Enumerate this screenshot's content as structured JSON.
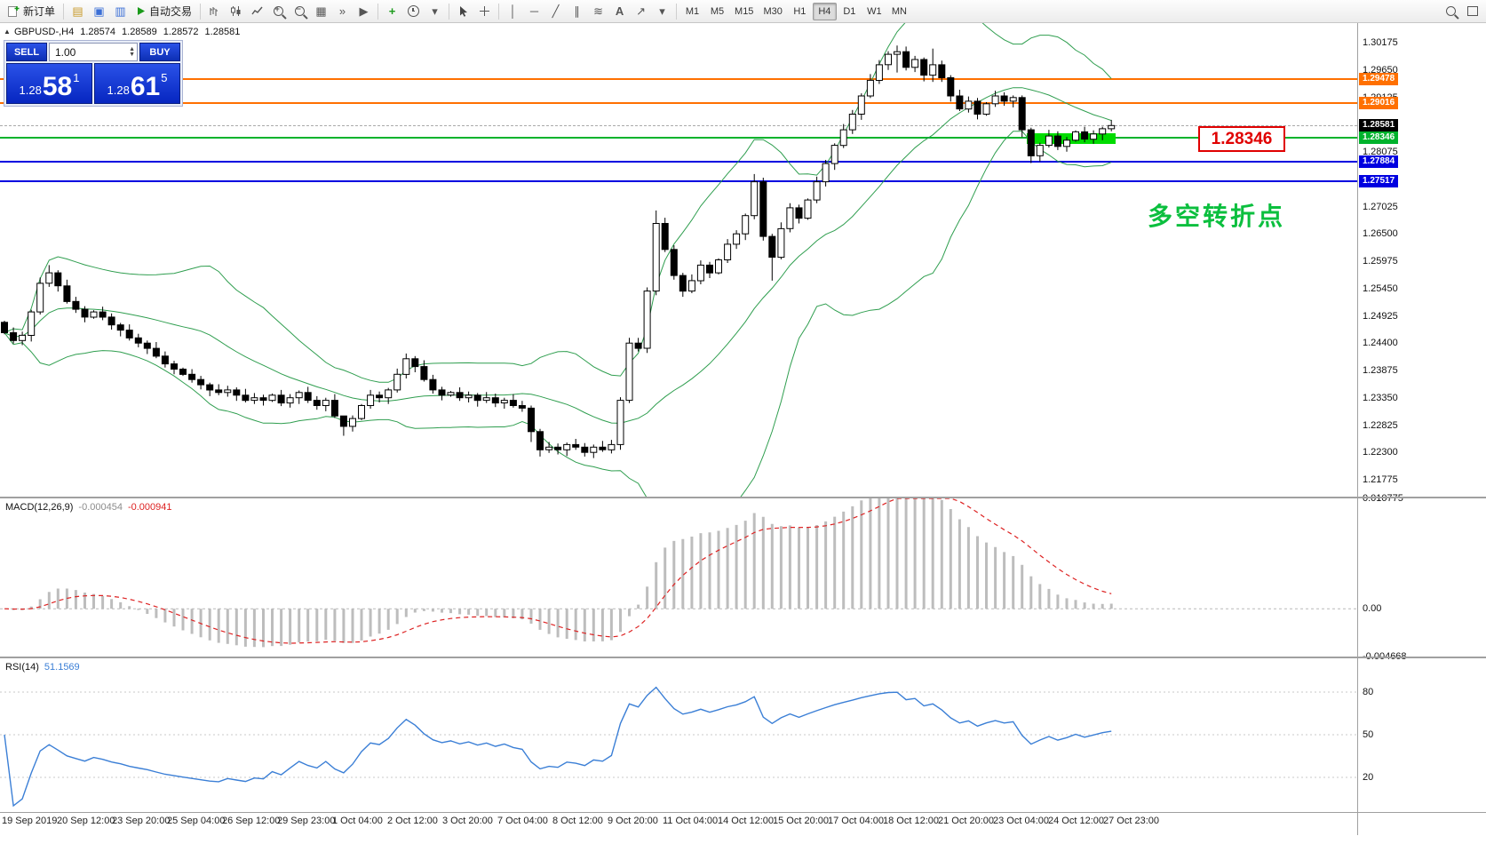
{
  "toolbar": {
    "new_order_label": "新订单",
    "autotrading_label": "自动交易",
    "timeframes": [
      "M1",
      "M5",
      "M15",
      "M30",
      "H1",
      "H4",
      "D1",
      "W1",
      "MN"
    ],
    "active_timeframe": "H4"
  },
  "chart_header": {
    "symbol": "GBPUSD-,H4",
    "open": "1.28574",
    "high": "1.28589",
    "low": "1.28572",
    "close": "1.28581"
  },
  "trade_panel": {
    "sell_label": "SELL",
    "buy_label": "BUY",
    "volume": "1.00",
    "sell_price_prefix": "1.28",
    "sell_price_main": "58",
    "sell_price_pip": "1",
    "buy_price_prefix": "1.28",
    "buy_price_main": "61",
    "buy_price_pip": "5"
  },
  "annotations": {
    "price_callout": "1.28346",
    "turning_point_text": "多空转折点"
  },
  "price_axis": {
    "labels": [
      "1.30175",
      "1.29650",
      "1.29125",
      "1.28600",
      "1.28075",
      "1.27550",
      "1.27025",
      "1.26500",
      "1.25975",
      "1.25450",
      "1.24925",
      "1.24400",
      "1.23875",
      "1.23350",
      "1.22825",
      "1.22300",
      "1.21775"
    ],
    "badges": [
      {
        "text": "1.29478",
        "price": 1.29478,
        "bg": "#ff7000"
      },
      {
        "text": "1.29016",
        "price": 1.29016,
        "bg": "#ff7000"
      },
      {
        "text": "1.28581",
        "price": 1.28581,
        "bg": "#000000"
      },
      {
        "text": "1.28346",
        "price": 1.28346,
        "bg": "#00b32c"
      },
      {
        "text": "1.27884",
        "price": 1.27884,
        "bg": "#0000e0"
      },
      {
        "text": "1.27517",
        "price": 1.27517,
        "bg": "#0000e0"
      }
    ]
  },
  "time_axis": {
    "labels": [
      "19 Sep 2019",
      "20 Sep 12:00",
      "23 Sep 20:00",
      "25 Sep 04:00",
      "26 Sep 12:00",
      "29 Sep 23:00",
      "1 Oct 04:00",
      "2 Oct 12:00",
      "3 Oct 20:00",
      "7 Oct 04:00",
      "8 Oct 12:00",
      "9 Oct 20:00",
      "11 Oct 04:00",
      "14 Oct 12:00",
      "15 Oct 20:00",
      "17 Oct 04:00",
      "18 Oct 12:00",
      "21 Oct 20:00",
      "23 Oct 04:00",
      "24 Oct 12:00",
      "27 Oct 23:00"
    ]
  },
  "chart_data": [
    {
      "type": "candlestick",
      "symbol": "GBPUSD-",
      "timeframe": "H4",
      "first_open": 1.248,
      "closes": [
        1.246,
        1.2445,
        1.2455,
        1.25,
        1.2555,
        1.2575,
        1.255,
        1.252,
        1.2505,
        1.249,
        1.25,
        1.249,
        1.2475,
        1.2465,
        1.245,
        1.244,
        1.243,
        1.2415,
        1.24,
        1.239,
        1.238,
        1.237,
        1.236,
        1.235,
        1.2345,
        1.235,
        1.234,
        1.233,
        1.2335,
        1.233,
        1.234,
        1.2325,
        1.2335,
        1.2345,
        1.233,
        1.232,
        1.233,
        1.23,
        1.228,
        1.2295,
        1.232,
        1.234,
        1.2335,
        1.235,
        1.238,
        1.241,
        1.2395,
        1.237,
        1.235,
        1.234,
        1.2345,
        1.2335,
        1.234,
        1.233,
        1.2335,
        1.2325,
        1.233,
        1.232,
        1.2315,
        1.227,
        1.2235,
        1.224,
        1.2235,
        1.2245,
        1.224,
        1.223,
        1.224,
        1.2235,
        1.2245,
        1.233,
        1.244,
        1.243,
        1.254,
        1.267,
        1.262,
        1.257,
        1.254,
        1.256,
        1.259,
        1.2575,
        1.26,
        1.263,
        1.265,
        1.2685,
        1.275,
        1.2645,
        1.2605,
        1.266,
        1.27,
        1.268,
        1.2715,
        1.275,
        1.2785,
        1.282,
        1.285,
        1.288,
        1.2915,
        1.2945,
        1.2975,
        1.2995,
        1.3,
        1.297,
        1.2985,
        1.2955,
        1.2975,
        1.295,
        1.2915,
        1.289,
        1.2905,
        1.288,
        1.29,
        1.2915,
        1.2905,
        1.2912,
        1.285,
        1.28,
        1.282,
        1.2838,
        1.2818,
        1.283,
        1.2846,
        1.2832,
        1.2842,
        1.2852,
        1.28581
      ],
      "default_wick": 0.0007,
      "wick_overrides": {
        "5": [
          1.259,
          1.2548
        ],
        "38": [
          1.2292,
          1.2262
        ],
        "45": [
          1.242,
          1.2372
        ],
        "59": [
          1.232,
          1.225
        ],
        "60": [
          1.2275,
          1.2222
        ],
        "70": [
          1.245,
          1.2325
        ],
        "73": [
          1.2695,
          1.2532
        ],
        "84": [
          1.2765,
          1.2678
        ],
        "86": [
          1.265,
          1.256
        ],
        "100": [
          1.3012,
          1.296
        ],
        "104": [
          1.3006,
          1.2942
        ],
        "114": [
          1.2916,
          1.2836
        ],
        "115": [
          1.2854,
          1.2786
        ]
      },
      "bollinger": {
        "period": 20,
        "deviation": 2,
        "color": "#2f9e4f"
      },
      "horizontal_lines": [
        {
          "price": 1.29478,
          "color": "#ff7000",
          "style": "solid",
          "width": 2
        },
        {
          "price": 1.29016,
          "color": "#ff7000",
          "style": "solid",
          "width": 2
        },
        {
          "price": 1.28581,
          "color": "#aaaaaa",
          "style": "dashed",
          "width": 1
        },
        {
          "price": 1.28346,
          "color": "#00b32c",
          "style": "solid",
          "width": 2
        },
        {
          "price": 1.27884,
          "color": "#0000e0",
          "style": "solid",
          "width": 2
        },
        {
          "price": 1.27517,
          "color": "#0000e0",
          "style": "solid",
          "width": 2
        }
      ],
      "highlight_rect": {
        "from_index": 115,
        "to_index": 124,
        "price_top": 1.2843,
        "price_bottom": 1.2822,
        "color": "#00dc00"
      },
      "current_price": 1.28581
    },
    {
      "type": "macd",
      "label": "MACD(12,26,9)",
      "fast": 12,
      "slow": 26,
      "signal": 9,
      "value_main": "-0.000454",
      "value_signal": "-0.000941",
      "axis_labels": [
        {
          "text": "0.010775",
          "value": 0.010775
        },
        {
          "text": "0.00",
          "value": 0
        },
        {
          "text": "-0.004668",
          "value": -0.004668
        }
      ],
      "histogram_color": "#bdbdbd",
      "signal_color": "#dd2222"
    },
    {
      "type": "rsi",
      "label": "RSI(14)",
      "period": 14,
      "value": "51.1569",
      "levels": [
        80,
        50,
        20
      ],
      "line_color": "#3b7fd6"
    }
  ]
}
